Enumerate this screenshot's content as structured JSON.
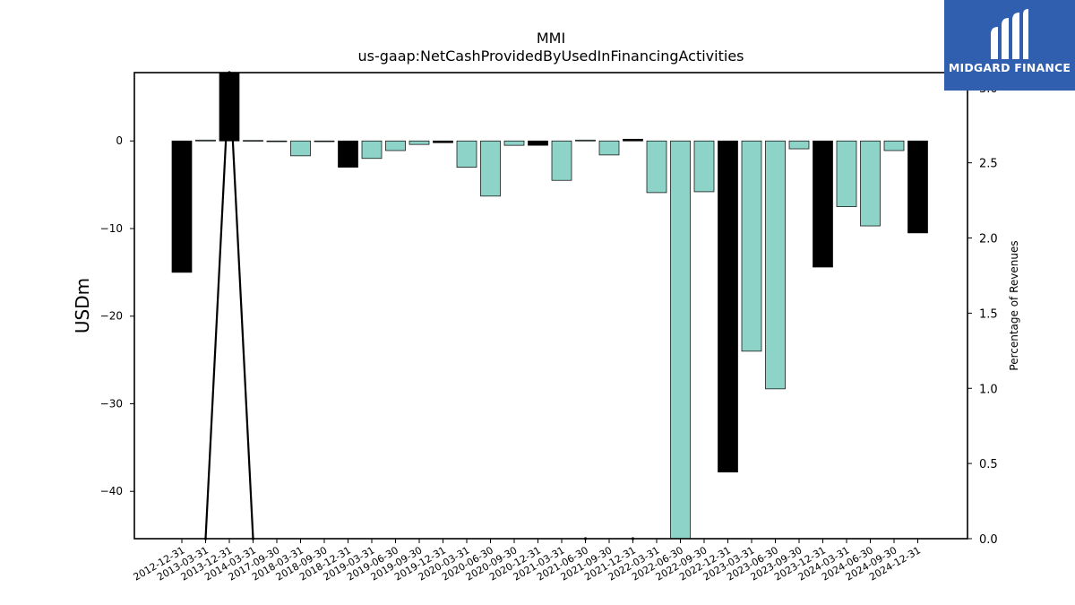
{
  "chart_data": {
    "type": "bar",
    "title": "MMI",
    "subtitle": "us-gaap:NetCashProvidedByUsedInFinancingActivities",
    "ylabel": "USDm",
    "y2label": "Percentage of Revenues",
    "ylim": [
      -45.4,
      7.8
    ],
    "y2lim": [
      0.0,
      3.1
    ],
    "yticks": [
      0,
      -10,
      -20,
      -30,
      -40
    ],
    "y2ticks": [
      0.0,
      0.5,
      1.0,
      1.5,
      2.0,
      2.5,
      3.0
    ],
    "categories": [
      "2012-12-31",
      "2013-03-31",
      "2013-12-31",
      "2014-03-31",
      "2017-09-30",
      "2018-03-31",
      "2018-09-30",
      "2018-12-31",
      "2019-03-31",
      "2019-06-30",
      "2019-09-30",
      "2019-12-31",
      "2020-03-31",
      "2020-06-30",
      "2020-09-30",
      "2020-12-31",
      "2021-03-31",
      "2021-06-30",
      "2021-09-30",
      "2021-12-31",
      "2022-03-31",
      "2022-06-30",
      "2022-09-30",
      "2022-12-31",
      "2023-03-31",
      "2023-06-30",
      "2023-09-30",
      "2023-12-31",
      "2024-03-31",
      "2024-06-30",
      "2024-09-30",
      "2024-12-31"
    ],
    "values": [
      -15.0,
      0.1,
      8.8,
      0.05,
      -0.05,
      -1.7,
      -0.05,
      -3.0,
      -2.0,
      -1.1,
      -0.4,
      -0.2,
      -3.0,
      -6.3,
      -0.5,
      -0.5,
      -4.5,
      0.1,
      -1.6,
      0.2,
      -5.9,
      -45.4,
      -5.8,
      -37.8,
      -24.0,
      -28.3,
      -0.9,
      -14.4,
      -7.5,
      -9.7,
      -1.1,
      -10.5
    ],
    "quarter_end": [
      true,
      false,
      true,
      false,
      false,
      false,
      false,
      true,
      false,
      false,
      false,
      true,
      false,
      false,
      false,
      true,
      false,
      false,
      false,
      true,
      false,
      false,
      false,
      true,
      false,
      false,
      false,
      true,
      false,
      false,
      false,
      true
    ],
    "pct_revenues": [
      null,
      0.0,
      3.1,
      0.0,
      null,
      null,
      null,
      null,
      null,
      null,
      null,
      null,
      null,
      null,
      null,
      null,
      null,
      0.0,
      null,
      0.0,
      null,
      null,
      null,
      null,
      null,
      null,
      null,
      null,
      null,
      null,
      null,
      null
    ],
    "colors": {
      "year_end": "#000000",
      "other": "#8dd3c7",
      "line": "#000000"
    },
    "grid": false
  },
  "logo": {
    "text": "MIDGARD FINANCE"
  }
}
